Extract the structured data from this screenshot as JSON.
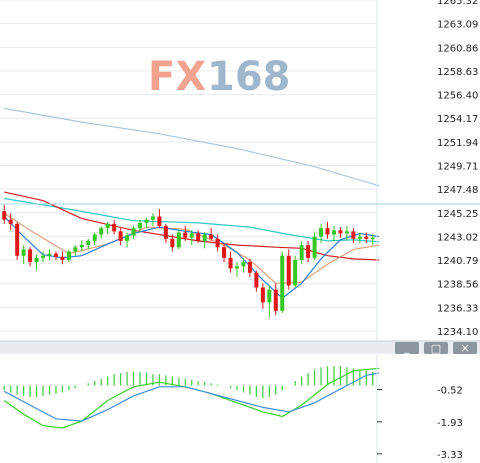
{
  "watermark": {
    "fx": "FX",
    "num": "168",
    "fx_color": "#f2a38f",
    "num_color": "#9fb7cc"
  },
  "colors": {
    "up": "#34c71f",
    "down": "#e01818",
    "ma_red": "#d41e1e",
    "ma_cyan": "#33c7c7",
    "ma_orange": "#e0a07a",
    "ma_blue_short": "#2a7fd8",
    "ma_long": "#a9c8de",
    "osc_green": "#38d02a",
    "osc_blue": "#3f8fd8",
    "hist": "#48d048",
    "panel_button": "#8c969e",
    "divider": "#c6ced6"
  },
  "toolbar": {
    "minimize_glyph": "_",
    "maximize_glyph": "□",
    "close_glyph": "×"
  },
  "chart_data": [
    {
      "type": "candlestick",
      "title": "",
      "y_axis_ticks": [
        "1265.32",
        "1263.09",
        "1260.86",
        "1258.63",
        "1256.40",
        "1254.17",
        "1251.94",
        "1249.71",
        "1247.48",
        "1245.25",
        "1243.02",
        "1240.79",
        "1238.56",
        "1236.33",
        "1234.10"
      ],
      "ylim": [
        1234.1,
        1265.32
      ],
      "grid": true,
      "candles": [
        [
          1245.4,
          1246.0,
          1244.2,
          1244.6
        ],
        [
          1244.6,
          1245.2,
          1243.6,
          1244.2
        ],
        [
          1244.2,
          1244.4,
          1240.8,
          1241.2
        ],
        [
          1241.2,
          1242.2,
          1240.4,
          1241.8
        ],
        [
          1241.8,
          1242.0,
          1240.2,
          1240.6
        ],
        [
          1240.6,
          1241.3,
          1239.8,
          1241.0
        ],
        [
          1241.0,
          1241.6,
          1240.6,
          1241.2
        ],
        [
          1241.2,
          1241.8,
          1240.8,
          1241.4
        ],
        [
          1241.4,
          1241.6,
          1240.8,
          1241.1
        ],
        [
          1241.1,
          1241.6,
          1240.4,
          1240.8
        ],
        [
          1240.8,
          1241.8,
          1240.6,
          1241.6
        ],
        [
          1241.6,
          1242.2,
          1241.2,
          1242.0
        ],
        [
          1242.0,
          1242.6,
          1241.6,
          1242.2
        ],
        [
          1242.2,
          1242.8,
          1241.8,
          1242.6
        ],
        [
          1242.6,
          1243.4,
          1242.2,
          1243.2
        ],
        [
          1243.2,
          1244.0,
          1242.8,
          1243.8
        ],
        [
          1243.8,
          1244.4,
          1243.2,
          1244.2
        ],
        [
          1244.2,
          1244.6,
          1243.2,
          1243.5
        ],
        [
          1243.5,
          1243.8,
          1242.2,
          1242.6
        ],
        [
          1242.6,
          1243.4,
          1242.0,
          1243.1
        ],
        [
          1243.1,
          1244.0,
          1242.8,
          1243.8
        ],
        [
          1243.8,
          1244.6,
          1243.4,
          1244.3
        ],
        [
          1244.3,
          1244.8,
          1243.8,
          1244.6
        ],
        [
          1244.6,
          1245.2,
          1244.0,
          1244.9
        ],
        [
          1244.9,
          1245.6,
          1243.8,
          1244.0
        ],
        [
          1244.0,
          1244.2,
          1242.4,
          1242.8
        ],
        [
          1242.8,
          1243.2,
          1241.6,
          1242.0
        ],
        [
          1242.0,
          1243.6,
          1241.8,
          1243.4
        ],
        [
          1243.4,
          1244.0,
          1242.6,
          1242.9
        ],
        [
          1242.9,
          1243.6,
          1242.2,
          1243.3
        ],
        [
          1243.3,
          1243.6,
          1242.4,
          1242.6
        ],
        [
          1242.6,
          1243.4,
          1241.9,
          1243.2
        ],
        [
          1243.2,
          1243.8,
          1242.6,
          1242.8
        ],
        [
          1242.8,
          1243.2,
          1241.6,
          1242.0
        ],
        [
          1242.0,
          1242.4,
          1240.6,
          1241.0
        ],
        [
          1241.0,
          1241.6,
          1239.6,
          1240.0
        ],
        [
          1240.0,
          1240.6,
          1239.2,
          1240.2
        ],
        [
          1240.2,
          1241.0,
          1239.6,
          1240.6
        ],
        [
          1240.6,
          1240.9,
          1239.2,
          1239.6
        ],
        [
          1239.6,
          1239.8,
          1237.8,
          1238.2
        ],
        [
          1238.2,
          1238.6,
          1236.2,
          1236.8
        ],
        [
          1236.8,
          1238.4,
          1235.4,
          1238.0
        ],
        [
          1238.0,
          1238.6,
          1235.6,
          1236.0
        ],
        [
          1236.0,
          1241.6,
          1235.8,
          1241.2
        ],
        [
          1241.2,
          1241.8,
          1238.0,
          1238.4
        ],
        [
          1238.4,
          1241.2,
          1238.2,
          1240.8
        ],
        [
          1240.8,
          1242.6,
          1240.4,
          1242.2
        ],
        [
          1242.2,
          1242.6,
          1240.6,
          1241.0
        ],
        [
          1241.0,
          1243.4,
          1240.8,
          1243.0
        ],
        [
          1243.0,
          1244.2,
          1242.4,
          1243.8
        ],
        [
          1243.8,
          1244.4,
          1242.8,
          1243.2
        ],
        [
          1243.2,
          1244.0,
          1242.6,
          1243.6
        ],
        [
          1243.6,
          1243.9,
          1242.9,
          1243.3
        ],
        [
          1243.3,
          1244.0,
          1242.6,
          1243.5
        ],
        [
          1243.5,
          1243.8,
          1242.4,
          1242.8
        ],
        [
          1242.8,
          1243.4,
          1242.4,
          1243.0
        ],
        [
          1243.0,
          1243.4,
          1242.4,
          1242.8
        ],
        [
          1242.8,
          1243.2,
          1242.2,
          1242.9
        ]
      ],
      "moving_averages": [
        {
          "color_key": "ma_long",
          "x": [
            0,
            12,
            24,
            36,
            48,
            58
          ],
          "y": [
            1255.1,
            1253.8,
            1252.7,
            1251.3,
            1249.6,
            1247.8
          ]
        },
        {
          "color_key": "ma_cyan",
          "x": [
            0,
            10,
            20,
            30,
            38,
            44,
            50,
            54,
            58
          ],
          "y": [
            1246.6,
            1245.6,
            1244.5,
            1244.3,
            1243.9,
            1243.2,
            1242.6,
            1242.7,
            1242.5
          ]
        },
        {
          "color_key": "ma_red",
          "x": [
            0,
            6,
            12,
            20,
            30,
            36,
            42,
            46,
            50,
            54,
            58
          ],
          "y": [
            1247.2,
            1246.4,
            1244.7,
            1243.6,
            1242.6,
            1242.2,
            1242.0,
            1241.9,
            1241.2,
            1240.9,
            1240.8
          ]
        },
        {
          "color_key": "ma_orange",
          "x": [
            0,
            4,
            10,
            16,
            22,
            28,
            34,
            38,
            42,
            46,
            50,
            54,
            58
          ],
          "y": [
            1245.2,
            1243.6,
            1241.4,
            1242.3,
            1243.9,
            1243.7,
            1242.2,
            1240.8,
            1238.6,
            1238.7,
            1240.4,
            1241.8,
            1242.2
          ]
        },
        {
          "color_key": "ma_blue_short",
          "x": [
            0,
            3,
            6,
            9,
            12,
            16,
            20,
            24,
            28,
            32,
            36,
            40,
            43,
            46,
            49,
            52,
            55,
            58
          ],
          "y": [
            1244.9,
            1243.0,
            1241.3,
            1241.0,
            1241.2,
            1242.3,
            1243.3,
            1243.9,
            1243.5,
            1243.2,
            1241.5,
            1238.9,
            1237.2,
            1238.6,
            1240.9,
            1242.7,
            1243.3,
            1243.0
          ]
        }
      ]
    },
    {
      "type": "line",
      "title": "",
      "y_axis_ticks": [
        "-0.52",
        "-1.93",
        "-3.33"
      ],
      "ylim": [
        -3.6,
        0.9
      ],
      "histogram": [
        -0.2,
        -0.3,
        -0.4,
        -0.45,
        -0.5,
        -0.5,
        -0.45,
        -0.4,
        -0.35,
        -0.3,
        -0.2,
        -0.1,
        0.0,
        0.1,
        0.2,
        0.3,
        0.4,
        0.5,
        0.55,
        0.6,
        0.6,
        0.6,
        0.55,
        0.5,
        0.5,
        0.45,
        0.4,
        0.35,
        0.3,
        0.25,
        0.2,
        0.15,
        0.1,
        0.05,
        0.0,
        -0.1,
        -0.2,
        -0.3,
        -0.4,
        -0.5,
        -0.55,
        -0.5,
        -0.4,
        -0.2,
        0.0,
        0.2,
        0.4,
        0.55,
        0.7,
        0.8,
        0.85,
        0.85,
        0.85,
        0.8,
        0.75,
        0.7,
        0.65,
        0.6
      ],
      "series": [
        {
          "color_key": "osc_green",
          "x": [
            0,
            3,
            6,
            9,
            12,
            16,
            20,
            24,
            28,
            32,
            36,
            40,
            43,
            46,
            50,
            54,
            58
          ],
          "y": [
            -1.0,
            -1.6,
            -2.1,
            -2.2,
            -1.9,
            -1.0,
            -0.4,
            -0.2,
            -0.4,
            -0.7,
            -1.1,
            -1.5,
            -1.7,
            -1.2,
            -0.3,
            0.3,
            0.4
          ]
        },
        {
          "color_key": "osc_blue",
          "x": [
            0,
            4,
            8,
            12,
            16,
            20,
            24,
            28,
            32,
            36,
            40,
            44,
            48,
            52,
            56,
            58
          ],
          "y": [
            -0.6,
            -1.2,
            -1.8,
            -1.9,
            -1.4,
            -0.8,
            -0.4,
            -0.4,
            -0.7,
            -1.0,
            -1.3,
            -1.5,
            -1.1,
            -0.5,
            0.1,
            0.2
          ]
        }
      ]
    }
  ]
}
